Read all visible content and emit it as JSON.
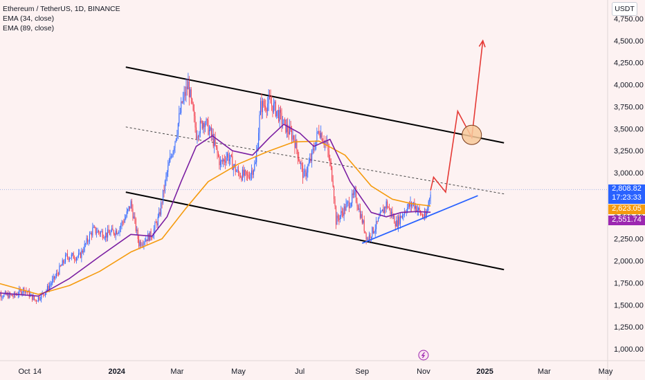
{
  "legend": {
    "title": "Ethereum / TetherUS, 1D, BINANCE",
    "ema_fast": "EMA (34, close)",
    "ema_slow": "EMA (89, close)"
  },
  "currency_label": "USDT",
  "price_labels": {
    "last": "2,808.82",
    "countdown": "17:23:33",
    "ema_slow_value": "2,623.05",
    "ema_fast_value": "2,551.74"
  },
  "colors": {
    "background": "#fdf2f2",
    "ema_fast": "#7b1fa2",
    "ema_slow": "#f59b0e",
    "up_candle": "#2962ff",
    "down_candle": "#f23645",
    "channel": "#000000",
    "arrow": "#e53935",
    "support": "#2962ff",
    "last_price_box": "#2962ff",
    "ema_fast_box": "#9c27b0",
    "ema_slow_box": "#f59b0e"
  },
  "chart_data": {
    "type": "candlestick",
    "title": "Ethereum / TetherUS, 1D, BINANCE",
    "y_ticks": [
      "1,000.00",
      "1,250.00",
      "1,500.00",
      "1,750.00",
      "2,000.00",
      "2,250.00",
      "2,500.00",
      "2,750.00",
      "3,000.00",
      "3,250.00",
      "3,500.00",
      "3,750.00",
      "4,000.00",
      "4,250.00",
      "4,500.00",
      "4,750.00"
    ],
    "y_tick_values": [
      1000,
      1250,
      1500,
      1750,
      2000,
      2250,
      2500,
      2750,
      3000,
      3250,
      3500,
      3750,
      4000,
      4250,
      4500,
      4750
    ],
    "ylim": [
      920,
      4850
    ],
    "x_ticks": [
      {
        "label": "Oct",
        "date": "2023-10-01"
      },
      {
        "label": "14",
        "date": "2023-10-14"
      },
      {
        "label": "2024",
        "date": "2024-01-01",
        "bold": true
      },
      {
        "label": "Mar",
        "date": "2024-03-01"
      },
      {
        "label": "May",
        "date": "2024-05-01"
      },
      {
        "label": "Jul",
        "date": "2024-07-01"
      },
      {
        "label": "Sep",
        "date": "2024-09-01"
      },
      {
        "label": "Nov",
        "date": "2024-11-01"
      },
      {
        "label": "2025",
        "date": "2025-01-01",
        "bold": true
      },
      {
        "label": "Mar",
        "date": "2025-03-01"
      },
      {
        "label": "May",
        "date": "2025-05-01"
      }
    ],
    "price_path": [
      [
        "2023-09-01",
        1630
      ],
      [
        "2023-09-20",
        1600
      ],
      [
        "2023-10-01",
        1680
      ],
      [
        "2023-10-12",
        1550
      ],
      [
        "2023-10-22",
        1650
      ],
      [
        "2023-11-01",
        1820
      ],
      [
        "2023-11-12",
        2050
      ],
      [
        "2023-11-25",
        2050
      ],
      [
        "2023-12-08",
        2350
      ],
      [
        "2023-12-22",
        2300
      ],
      [
        "2024-01-02",
        2350
      ],
      [
        "2024-01-10",
        2500
      ],
      [
        "2024-01-15",
        2650
      ],
      [
        "2024-01-23",
        2200
      ],
      [
        "2024-02-05",
        2300
      ],
      [
        "2024-02-12",
        2500
      ],
      [
        "2024-02-20",
        3000
      ],
      [
        "2024-02-28",
        3380
      ],
      [
        "2024-03-06",
        3800
      ],
      [
        "2024-03-12",
        4000
      ],
      [
        "2024-03-20",
        3450
      ],
      [
        "2024-03-28",
        3600
      ],
      [
        "2024-04-05",
        3400
      ],
      [
        "2024-04-13",
        3100
      ],
      [
        "2024-04-20",
        3200
      ],
      [
        "2024-04-30",
        3000
      ],
      [
        "2024-05-10",
        2950
      ],
      [
        "2024-05-18",
        3100
      ],
      [
        "2024-05-23",
        3750
      ],
      [
        "2024-06-01",
        3800
      ],
      [
        "2024-06-08",
        3700
      ],
      [
        "2024-06-15",
        3550
      ],
      [
        "2024-06-25",
        3400
      ],
      [
        "2024-07-05",
        2950
      ],
      [
        "2024-07-12",
        3150
      ],
      [
        "2024-07-20",
        3500
      ],
      [
        "2024-07-28",
        3300
      ],
      [
        "2024-08-03",
        2900
      ],
      [
        "2024-08-06",
        2450
      ],
      [
        "2024-08-15",
        2600
      ],
      [
        "2024-08-25",
        2750
      ],
      [
        "2024-09-06",
        2250
      ],
      [
        "2024-09-15",
        2400
      ],
      [
        "2024-09-25",
        2650
      ],
      [
        "2024-10-05",
        2420
      ],
      [
        "2024-10-15",
        2600
      ],
      [
        "2024-10-22",
        2650
      ],
      [
        "2024-10-30",
        2520
      ],
      [
        "2024-11-03",
        2480
      ],
      [
        "2024-11-08",
        2800
      ]
    ],
    "ema_34": [
      [
        "2023-09-01",
        1640
      ],
      [
        "2023-10-15",
        1600
      ],
      [
        "2023-11-15",
        1800
      ],
      [
        "2023-12-15",
        2050
      ],
      [
        "2024-01-15",
        2300
      ],
      [
        "2024-02-05",
        2280
      ],
      [
        "2024-02-20",
        2500
      ],
      [
        "2024-03-05",
        2900
      ],
      [
        "2024-03-20",
        3300
      ],
      [
        "2024-04-05",
        3420
      ],
      [
        "2024-04-25",
        3250
      ],
      [
        "2024-05-15",
        3200
      ],
      [
        "2024-06-01",
        3400
      ],
      [
        "2024-06-15",
        3550
      ],
      [
        "2024-07-01",
        3450
      ],
      [
        "2024-07-15",
        3300
      ],
      [
        "2024-07-31",
        3380
      ],
      [
        "2024-08-20",
        2900
      ],
      [
        "2024-09-10",
        2550
      ],
      [
        "2024-09-25",
        2500
      ],
      [
        "2024-10-10",
        2550
      ],
      [
        "2024-10-25",
        2560
      ],
      [
        "2024-11-08",
        2552
      ]
    ],
    "ema_89": [
      [
        "2023-09-01",
        1760
      ],
      [
        "2023-10-15",
        1620
      ],
      [
        "2023-11-15",
        1720
      ],
      [
        "2023-12-15",
        1880
      ],
      [
        "2024-01-15",
        2100
      ],
      [
        "2024-02-15",
        2250
      ],
      [
        "2024-03-10",
        2600
      ],
      [
        "2024-04-01",
        2900
      ],
      [
        "2024-05-01",
        3100
      ],
      [
        "2024-06-01",
        3250
      ],
      [
        "2024-06-25",
        3350
      ],
      [
        "2024-07-20",
        3360
      ],
      [
        "2024-08-15",
        3200
      ],
      [
        "2024-09-10",
        2850
      ],
      [
        "2024-10-01",
        2700
      ],
      [
        "2024-10-20",
        2650
      ],
      [
        "2024-11-08",
        2623
      ]
    ],
    "channel_upper": [
      [
        "2024-01-10",
        4200
      ],
      [
        "2025-01-20",
        3340
      ]
    ],
    "channel_mid": [
      [
        "2024-01-10",
        3520
      ],
      [
        "2025-01-20",
        2760
      ]
    ],
    "channel_lower": [
      [
        "2024-01-10",
        2780
      ],
      [
        "2025-01-20",
        1900
      ]
    ],
    "support_line": [
      [
        "2024-09-01",
        2200
      ],
      [
        "2024-12-25",
        2740
      ]
    ],
    "projection_path": [
      [
        "2024-11-08",
        2800
      ],
      [
        "2024-11-11",
        2950
      ],
      [
        "2024-11-23",
        2780
      ],
      [
        "2024-12-05",
        3700
      ],
      [
        "2024-12-19",
        3400
      ],
      [
        "2024-12-30",
        4500
      ]
    ],
    "highlight_circle": [
      "2024-12-19",
      3430
    ],
    "last_price": 2808.82,
    "ema_34_last": 2551.74,
    "ema_89_last": 2623.05
  }
}
